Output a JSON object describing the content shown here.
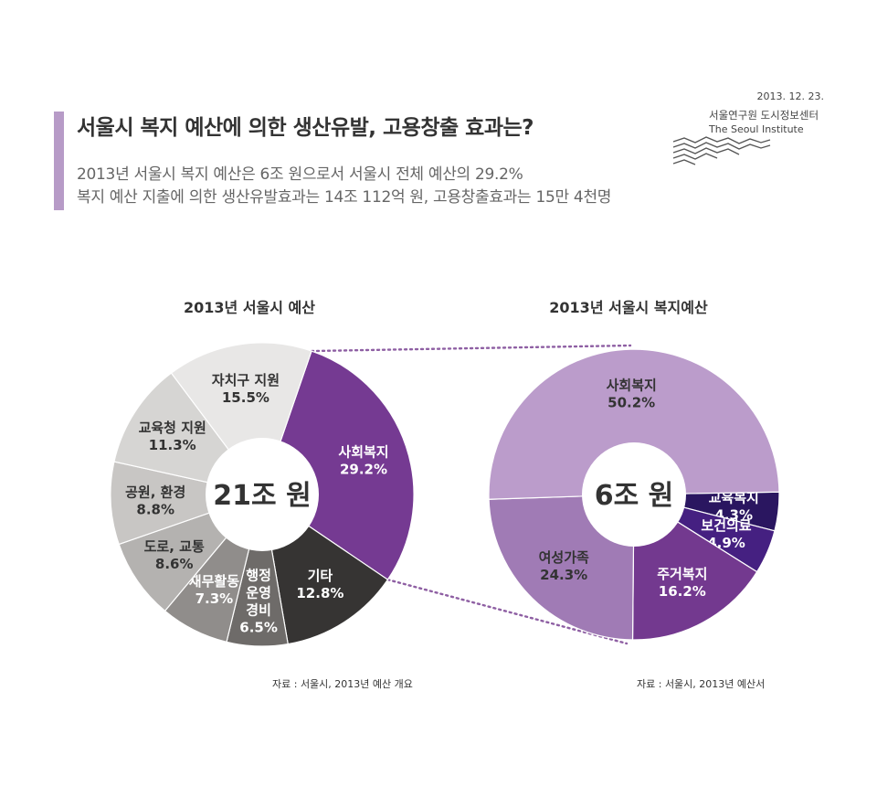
{
  "header": {
    "title": "서울시 복지 예산에 의한 생산유발, 고용창출 효과는?",
    "subtitle_line1": "2013년 서울시 복지 예산은 6조 원으로서 서울시 전체 예산의 29.2%",
    "subtitle_line2": "복지 예산 지출에 의한 생산유발효과는 14조 112억 원, 고용창출효과는 15만 4천명",
    "date": "2013. 12. 23.",
    "org_korean": "서울연구원 도시정보센터",
    "org_english": "The Seoul Institute"
  },
  "colors": {
    "accent_bar": "#b79bc7",
    "connector": "#8e5fa3"
  },
  "chart_data": [
    {
      "type": "pie",
      "title": "2013년 서울시 예산",
      "center_label": "21조 원",
      "source": "자료 : 서울시, 2013년 예산 개요",
      "slices": [
        {
          "label": "사회복지",
          "value": 29.2,
          "value_label": "29.2%",
          "color": "#753a92",
          "text_color": "#ffffff"
        },
        {
          "label": "기타",
          "value": 12.8,
          "value_label": "12.8%",
          "color": "#363433",
          "text_color": "#ffffff"
        },
        {
          "label": "행정운영경비",
          "label_lines": [
            "행정",
            "운영",
            "경비"
          ],
          "value": 6.5,
          "value_label": "6.5%",
          "color": "#6e6b69",
          "text_color": "#ffffff"
        },
        {
          "label": "재무활동",
          "value": 7.3,
          "value_label": "7.3%",
          "color": "#908d8b",
          "text_color": "#ffffff"
        },
        {
          "label": "도로, 교통",
          "value": 8.6,
          "value_label": "8.6%",
          "color": "#b4b2b0",
          "text_color": "#333333"
        },
        {
          "label": "공원, 환경",
          "value": 8.8,
          "value_label": "8.8%",
          "color": "#c8c6c4",
          "text_color": "#333333"
        },
        {
          "label": "교육청 지원",
          "value": 11.3,
          "value_label": "11.3%",
          "color": "#d6d5d3",
          "text_color": "#333333"
        },
        {
          "label": "자치구 지원",
          "value": 15.5,
          "value_label": "15.5%",
          "color": "#e8e7e6",
          "text_color": "#333333"
        }
      ]
    },
    {
      "type": "pie",
      "title": "2013년 서울시 복지예산",
      "center_label": "6조 원",
      "source": "자료 : 서울시, 2013년 예산서",
      "slices": [
        {
          "label": "교육복지",
          "value": 4.3,
          "value_label": "4.3%",
          "color": "#2a1660",
          "text_color": "#ffffff"
        },
        {
          "label": "보건의료",
          "value": 4.9,
          "value_label": "4.9%",
          "color": "#452081",
          "text_color": "#ffffff"
        },
        {
          "label": "주거복지",
          "value": 16.2,
          "value_label": "16.2%",
          "color": "#73398f",
          "text_color": "#ffffff"
        },
        {
          "label": "여성가족",
          "value": 24.3,
          "value_label": "24.3%",
          "color": "#a07bb5",
          "text_color": "#333333"
        },
        {
          "label": "사회복지",
          "value": 50.2,
          "value_label": "50.2%",
          "color": "#bb9ccb",
          "text_color": "#333333"
        }
      ]
    }
  ]
}
